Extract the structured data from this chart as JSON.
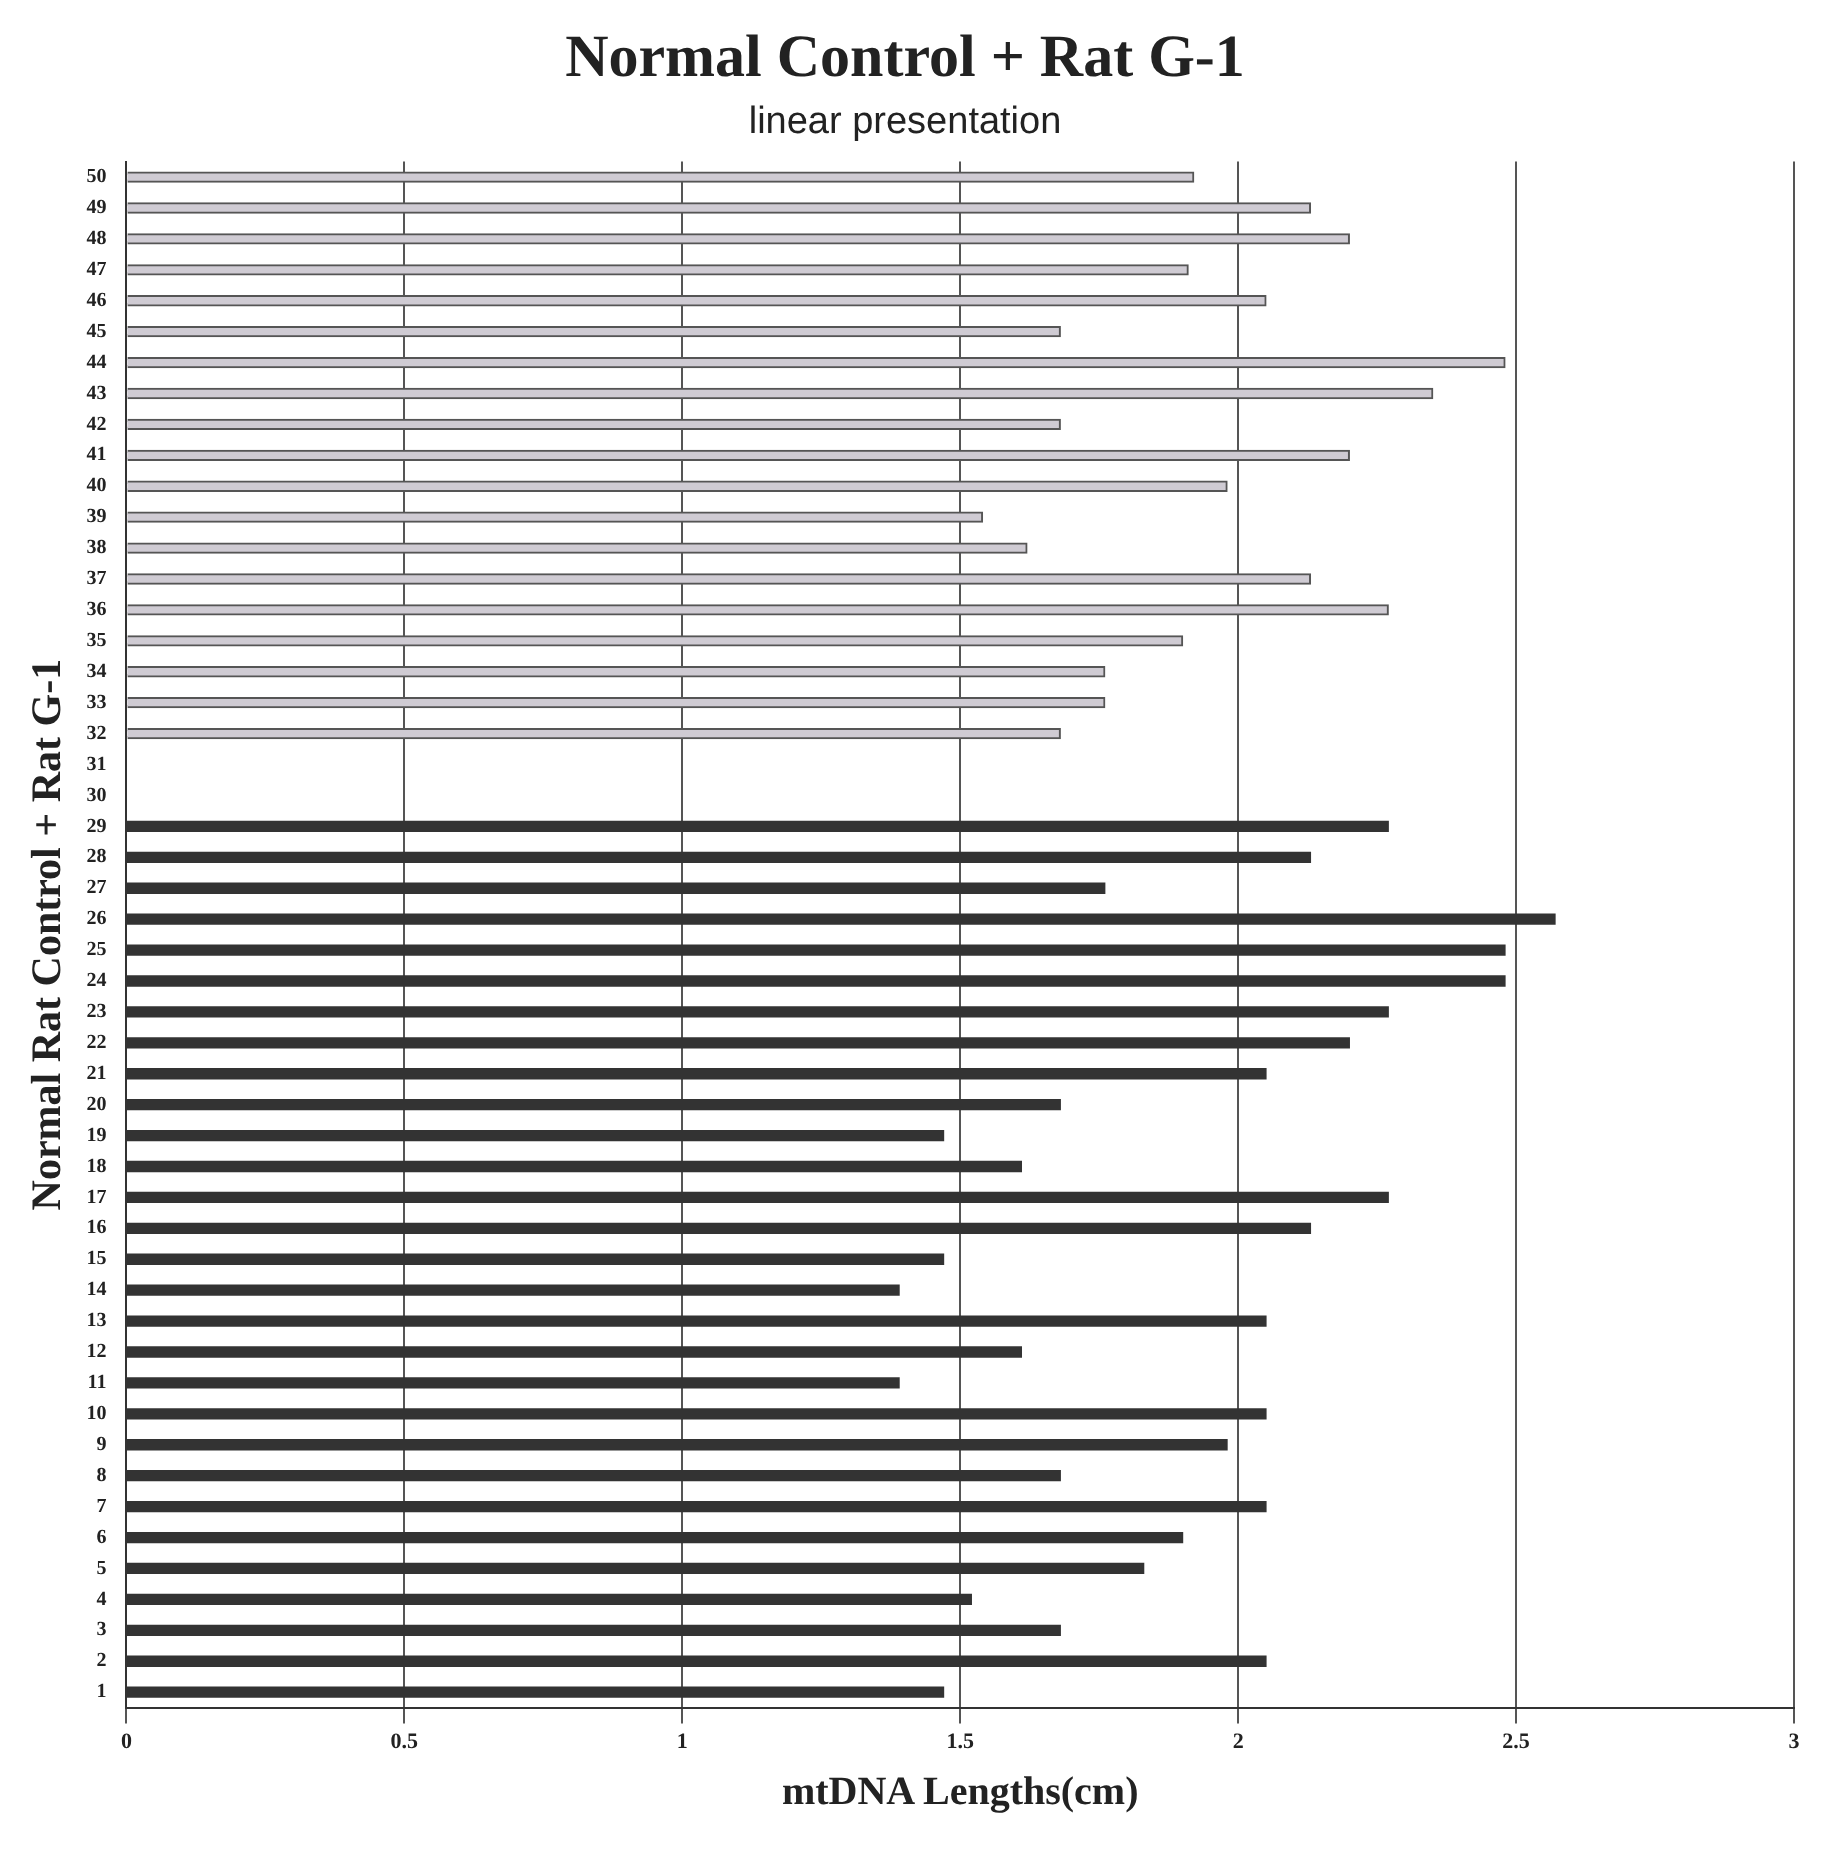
{
  "chart_data": {
    "type": "bar",
    "orientation": "horizontal",
    "title": "Normal Control + Rat G-1",
    "subtitle": "linear presentation",
    "xlabel": "mtDNA Lengths(cm)",
    "ylabel": "Normal Rat Control + Rat G-1",
    "categories": [
      "50",
      "49",
      "48",
      "47",
      "46",
      "45",
      "44",
      "43",
      "42",
      "41",
      "40",
      "39",
      "38",
      "37",
      "36",
      "35",
      "34",
      "33",
      "32",
      "31",
      "30",
      "29",
      "28",
      "27",
      "26",
      "25",
      "24",
      "23",
      "22",
      "21",
      "20",
      "19",
      "18",
      "17",
      "16",
      "15",
      "14",
      "13",
      "12",
      "11",
      "10",
      "9",
      "8",
      "7",
      "6",
      "5",
      "4",
      "3",
      "2",
      "1"
    ],
    "series": [
      {
        "color": "#cfcbd3",
        "values": [
          1.92,
          2.13,
          2.2,
          1.91,
          2.05,
          1.68,
          2.48,
          2.35,
          1.68,
          2.2,
          1.98,
          1.54,
          1.62,
          2.13,
          2.27,
          1.9,
          1.76,
          1.76,
          1.68,
          null,
          null,
          null,
          null,
          null,
          null,
          null,
          null,
          null,
          null,
          null,
          null,
          null,
          null,
          null,
          null,
          null,
          null,
          null,
          null,
          null,
          null,
          null,
          null,
          null,
          null,
          null,
          null,
          null,
          null,
          null
        ]
      },
      {
        "color": "#333333",
        "values": [
          null,
          null,
          null,
          null,
          null,
          null,
          null,
          null,
          null,
          null,
          null,
          null,
          null,
          null,
          null,
          null,
          null,
          null,
          null,
          null,
          null,
          2.27,
          2.13,
          1.76,
          2.57,
          2.48,
          2.48,
          2.27,
          2.2,
          2.05,
          1.68,
          1.47,
          1.61,
          2.27,
          2.13,
          1.47,
          1.39,
          2.05,
          1.61,
          1.39,
          2.05,
          1.98,
          1.68,
          2.05,
          1.9,
          1.83,
          1.52,
          1.68,
          2.05,
          1.47
        ]
      }
    ],
    "xlim": [
      0,
      3
    ],
    "xticks": [
      0,
      0.5,
      1,
      1.5,
      2,
      2.5,
      3
    ],
    "grid": "x",
    "legend": false
  }
}
